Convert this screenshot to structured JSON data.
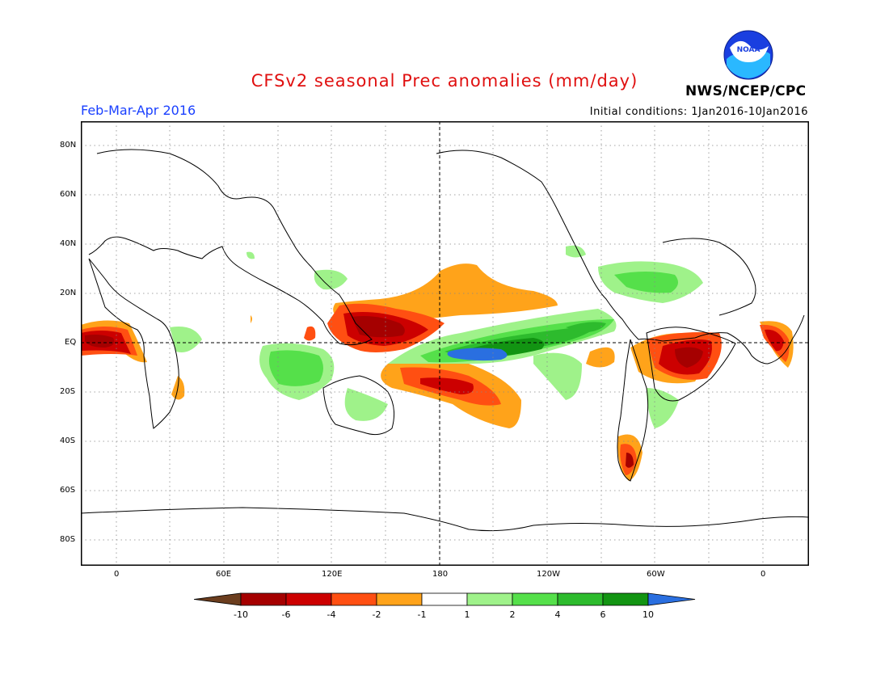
{
  "title": "CFSv2 seasonal Prec anomalies (mm/day)",
  "period": "Feb-Mar-Apr 2016",
  "initial_conditions": "Initial conditions: 1Jan2016-10Jan2016",
  "agency": "NWS/NCEP/CPC",
  "logo_text": "NOAA",
  "lat_labels": [
    "80N",
    "60N",
    "40N",
    "20N",
    "EQ",
    "20S",
    "40S",
    "60S",
    "80S"
  ],
  "lon_labels": [
    "0",
    "60E",
    "120E",
    "180",
    "120W",
    "60W",
    "0"
  ],
  "colorbar": {
    "labels": [
      "-10",
      "-6",
      "-4",
      "-2",
      "-1",
      "1",
      "2",
      "4",
      "6",
      "10"
    ],
    "colors": [
      "#6b3d1e",
      "#a50000",
      "#cc0000",
      "#ff4f12",
      "#ffa31a",
      "#ffffff",
      "#9ff28a",
      "#55e04a",
      "#2dbb2d",
      "#129412",
      "#2a6fe0"
    ]
  }
}
